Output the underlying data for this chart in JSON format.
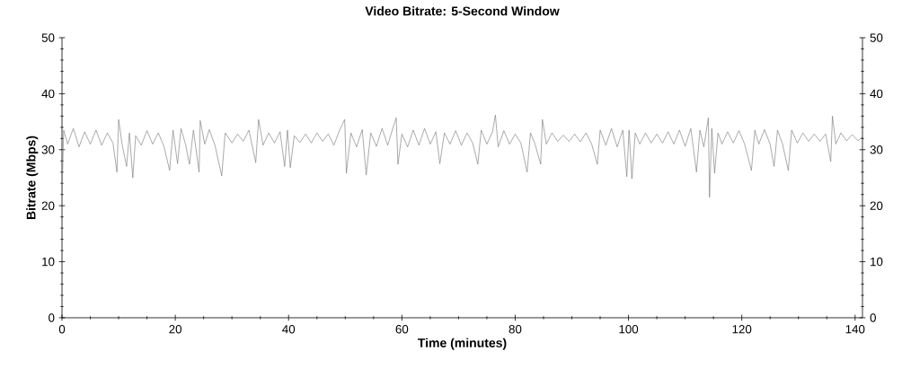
{
  "chart_data": {
    "type": "line",
    "title": "Video Bitrate: 5-Second Window",
    "xlabel": "Time (minutes)",
    "ylabel": "Bitrate (Mbps)",
    "color": "#7f7f7f",
    "xlim": [
      0,
      141.3
    ],
    "xticks": [
      0,
      20,
      40,
      60,
      80,
      100,
      120,
      140
    ],
    "ylim": [
      0,
      50
    ],
    "yticks": [
      0,
      10,
      20,
      30,
      40,
      50
    ],
    "y2lim": [
      0,
      50
    ],
    "y2ticks": [
      0,
      10,
      20,
      30,
      40,
      50
    ],
    "x": [
      0,
      0.3,
      1,
      2,
      3,
      4,
      5,
      6,
      7,
      8,
      9,
      9.7,
      10,
      10.6,
      11.4,
      11.9,
      12.5,
      13,
      14,
      15,
      16,
      17,
      18,
      19,
      19.6,
      20.4,
      21,
      21.8,
      22.5,
      23.2,
      24.2,
      24.4,
      25.2,
      26,
      27,
      28.2,
      28.8,
      30,
      31,
      32,
      33,
      34.2,
      34.7,
      35.5,
      36.5,
      37.5,
      38.5,
      39.3,
      39.8,
      40.3,
      41,
      42,
      43,
      44,
      45,
      46,
      47,
      48,
      49,
      49.9,
      50.2,
      51,
      52,
      53,
      53.7,
      54.5,
      55.5,
      56.5,
      57.5,
      58.3,
      59,
      59.3,
      60,
      61,
      62,
      63,
      64,
      65,
      66,
      66.7,
      67.5,
      68.5,
      69.5,
      70.5,
      71.5,
      72.5,
      73.4,
      74,
      75,
      76,
      76.5,
      77,
      78,
      79,
      80,
      81,
      82.1,
      82.7,
      83.5,
      84.5,
      84.8,
      85.5,
      86.5,
      87.5,
      88.5,
      89.5,
      90.5,
      91.5,
      92.5,
      93.5,
      94.5,
      95,
      96,
      97,
      98,
      99,
      99.7,
      100.1,
      100.6,
      101.2,
      102,
      103,
      104,
      105,
      106,
      107,
      108,
      109,
      110,
      111,
      112,
      112.6,
      113.3,
      114.1,
      114.3,
      114.7,
      115.2,
      115.8,
      116.5,
      117.5,
      118.5,
      119.5,
      120.5,
      121.7,
      122.3,
      123,
      124,
      125,
      125.7,
      126.3,
      127.2,
      128.2,
      128.8,
      129.8,
      130.8,
      131.8,
      132.8,
      133.8,
      134.8,
      135.7,
      136,
      136.6,
      137.5,
      138.5,
      139.5,
      140.5,
      141.3
    ],
    "values": [
      22,
      33.5,
      31,
      33.8,
      30.5,
      33.2,
      31,
      33.5,
      30.8,
      33,
      31.2,
      26,
      35.4,
      31,
      27,
      33,
      25,
      32.5,
      30.8,
      33.4,
      31,
      33,
      30.6,
      26.3,
      33.5,
      27.5,
      33.8,
      31,
      27.4,
      33.5,
      26,
      35.2,
      31,
      33.6,
      30.8,
      25.3,
      33,
      31.2,
      32.8,
      31.5,
      33.5,
      27.7,
      35.4,
      30.8,
      33,
      31.2,
      33.2,
      27,
      33.5,
      26.8,
      32.5,
      31.3,
      32.8,
      31.2,
      33,
      31.5,
      32.8,
      30.8,
      33.5,
      35.4,
      25.8,
      33,
      30.5,
      33.6,
      25.5,
      33,
      30.6,
      33.8,
      30.8,
      33.5,
      35.7,
      27.4,
      32.8,
      30.5,
      33.5,
      30.8,
      33.8,
      31,
      33.2,
      27.5,
      33,
      31,
      33.4,
      30.8,
      33,
      31.2,
      27.4,
      33.5,
      31,
      33.2,
      36.2,
      30.5,
      33.4,
      31,
      32.8,
      31.2,
      26,
      33,
      31,
      27.4,
      35.4,
      31,
      33,
      31.5,
      32.6,
      31.5,
      32.8,
      31.4,
      33,
      31,
      27.4,
      33.5,
      30.8,
      33.8,
      30.5,
      33.5,
      25.2,
      33.5,
      24.8,
      33,
      31,
      33,
      31.2,
      32.8,
      31.2,
      33.2,
      31,
      33.5,
      30.6,
      33.8,
      26,
      33.5,
      30.5,
      35.7,
      21.5,
      33.8,
      25.8,
      33,
      31,
      33.2,
      31.2,
      33.4,
      31,
      26.3,
      33.5,
      31,
      33.6,
      31,
      27,
      33.5,
      31,
      26.3,
      33.5,
      31.2,
      33,
      31.5,
      32.8,
      31.5,
      32.8,
      27.9,
      36,
      31,
      33,
      31.6,
      32.7,
      31.6,
      32.3
    ]
  }
}
